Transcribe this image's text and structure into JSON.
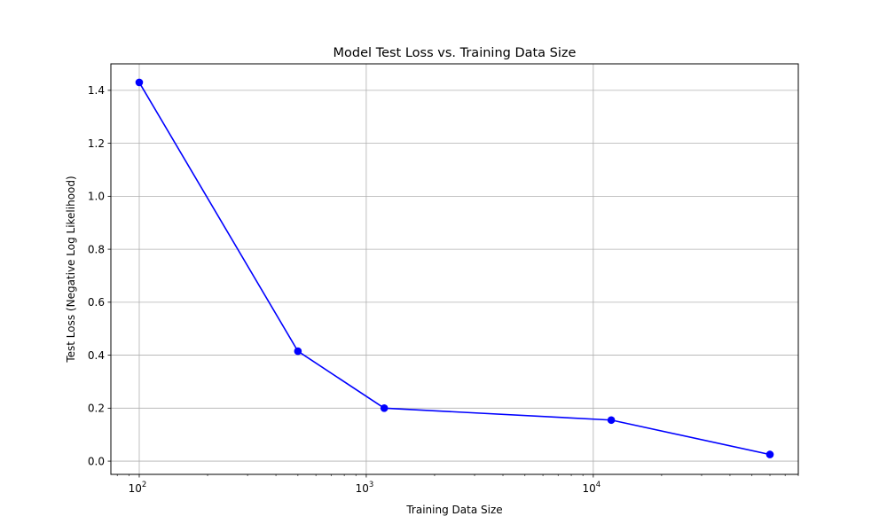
{
  "chart_data": {
    "type": "line",
    "title": "Model Test Loss vs. Training Data Size",
    "xlabel": "Training Data Size",
    "ylabel": "Test Loss (Negative Log Likelihood)",
    "xscale": "log",
    "x": [
      100,
      500,
      1200,
      12000,
      60000
    ],
    "series": [
      {
        "values": [
          1.43,
          0.415,
          0.2,
          0.155,
          0.025
        ],
        "color": "#0000ff",
        "marker": "circle"
      }
    ],
    "xlim": [
      75,
      80000
    ],
    "ylim": [
      -0.05,
      1.5
    ],
    "xticks": [
      {
        "value": 100,
        "base": "10",
        "exp": "2"
      },
      {
        "value": 1000,
        "base": "10",
        "exp": "3"
      },
      {
        "value": 10000,
        "base": "10",
        "exp": "4"
      }
    ],
    "yticks": [
      {
        "value": 0.0,
        "label": "0.0"
      },
      {
        "value": 0.2,
        "label": "0.2"
      },
      {
        "value": 0.4,
        "label": "0.4"
      },
      {
        "value": 0.6,
        "label": "0.6"
      },
      {
        "value": 0.8,
        "label": "0.8"
      },
      {
        "value": 1.0,
        "label": "1.0"
      },
      {
        "value": 1.2,
        "label": "1.2"
      },
      {
        "value": 1.4,
        "label": "1.4"
      }
    ],
    "grid": true,
    "grid_color": "#b0b0b0",
    "line_color": "#0000ff"
  }
}
